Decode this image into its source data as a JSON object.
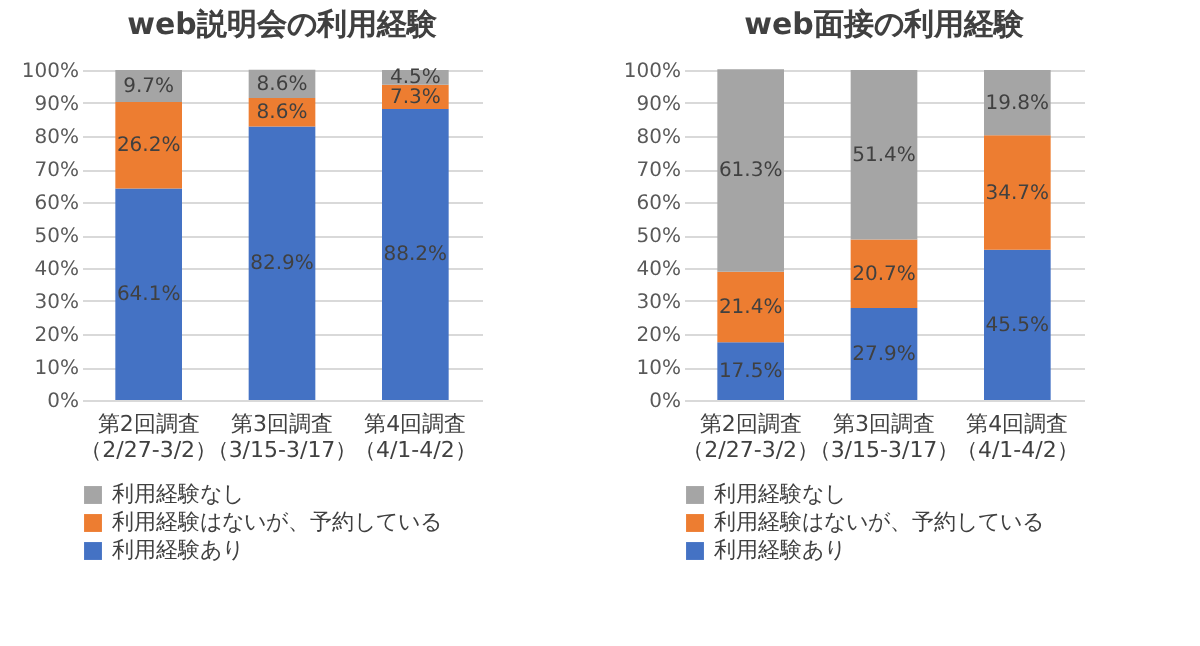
{
  "chart_data": [
    {
      "type": "bar",
      "title": "web説明会の利用経験",
      "stacked": true,
      "categories": [
        "第2回調査（2/27-3/2）",
        "第3回調査（3/15-3/17）",
        "第4回調査（4/1-4/2）"
      ],
      "series": [
        {
          "name": "利用経験あり",
          "color": "#4472c4",
          "values": [
            64.1,
            82.9,
            88.2
          ],
          "value_labels": [
            "64.1%",
            "82.9%",
            "88.2%"
          ]
        },
        {
          "name": "利用経験はないが、予約している",
          "color": "#ed7d31",
          "values": [
            26.2,
            8.6,
            7.3
          ],
          "value_labels": [
            "26.2%",
            "8.6%",
            "7.3%"
          ]
        },
        {
          "name": "利用経験なし",
          "color": "#a5a5a5",
          "values": [
            9.7,
            8.6,
            4.5
          ],
          "value_labels": [
            "9.7%",
            "8.6%",
            "4.5%"
          ]
        }
      ],
      "ylim": [
        0,
        100
      ],
      "yticks": [
        {
          "value": 0,
          "label": "0%"
        },
        {
          "value": 10,
          "label": "10%"
        },
        {
          "value": 20,
          "label": "20%"
        },
        {
          "value": 30,
          "label": "30%"
        },
        {
          "value": 40,
          "label": "40%"
        },
        {
          "value": 50,
          "label": "50%"
        },
        {
          "value": 60,
          "label": "60%"
        },
        {
          "value": 70,
          "label": "70%"
        },
        {
          "value": 80,
          "label": "80%"
        },
        {
          "value": 90,
          "label": "90%"
        },
        {
          "value": 100,
          "label": "100%"
        }
      ],
      "grid": "y",
      "legend": "bottom"
    },
    {
      "type": "bar",
      "title": "web面接の利用経験",
      "stacked": true,
      "categories": [
        "第2回調査（2/27-3/2）",
        "第3回調査（3/15-3/17）",
        "第4回調査（4/1-4/2）"
      ],
      "series": [
        {
          "name": "利用経験あり",
          "color": "#4472c4",
          "values": [
            17.5,
            27.9,
            45.5
          ],
          "value_labels": [
            "17.5%",
            "27.9%",
            "45.5%"
          ]
        },
        {
          "name": "利用経験はないが、予約している",
          "color": "#ed7d31",
          "values": [
            21.4,
            20.7,
            34.7
          ],
          "value_labels": [
            "21.4%",
            "20.7%",
            "34.7%"
          ]
        },
        {
          "name": "利用経験なし",
          "color": "#a5a5a5",
          "values": [
            61.3,
            51.4,
            19.8
          ],
          "value_labels": [
            "61.3%",
            "51.4%",
            "19.8%"
          ]
        }
      ],
      "ylim": [
        0,
        100
      ],
      "yticks": [
        {
          "value": 0,
          "label": "0%"
        },
        {
          "value": 10,
          "label": "10%"
        },
        {
          "value": 20,
          "label": "20%"
        },
        {
          "value": 30,
          "label": "30%"
        },
        {
          "value": 40,
          "label": "40%"
        },
        {
          "value": 50,
          "label": "50%"
        },
        {
          "value": 60,
          "label": "60%"
        },
        {
          "value": 70,
          "label": "70%"
        },
        {
          "value": 80,
          "label": "80%"
        },
        {
          "value": 90,
          "label": "90%"
        },
        {
          "value": 100,
          "label": "100%"
        }
      ],
      "grid": "y",
      "legend": "bottom"
    }
  ]
}
